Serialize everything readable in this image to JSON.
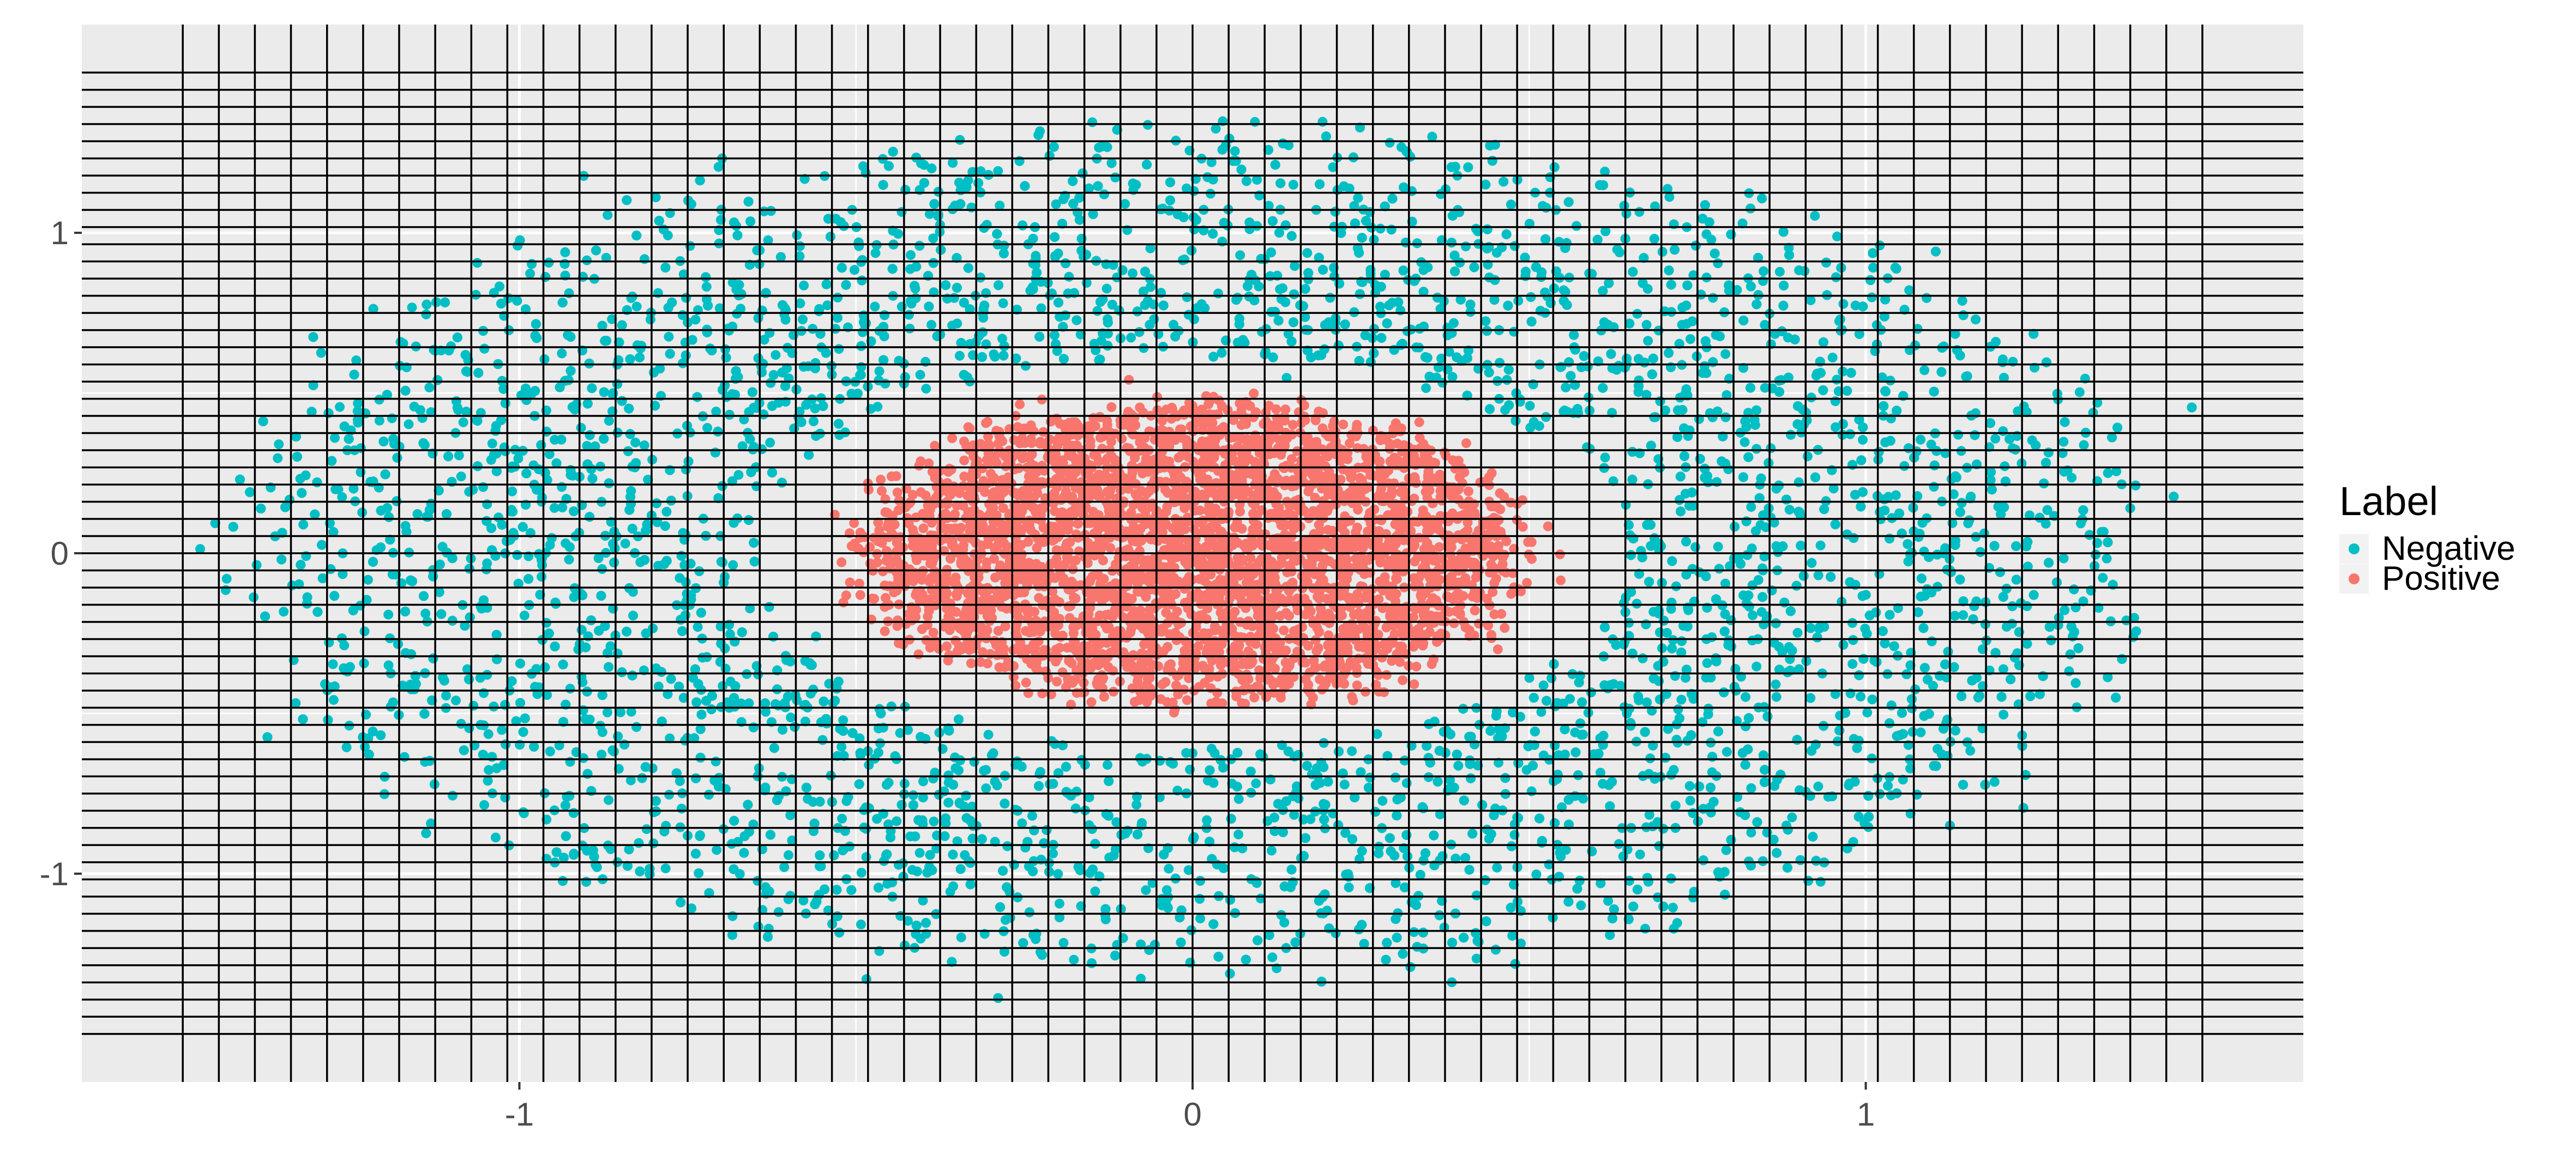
{
  "chart_data": {
    "type": "scatter",
    "title": "",
    "xlabel": "",
    "ylabel": "",
    "xlim": [
      -1.65,
      1.65
    ],
    "ylim": [
      -1.65,
      1.65
    ],
    "x_ticks": [
      -1,
      0,
      1
    ],
    "x_tick_labels": [
      "-1",
      "0",
      "1"
    ],
    "y_ticks": [
      -1,
      0,
      1
    ],
    "y_tick_labels": [
      "-1",
      "0",
      "1"
    ],
    "grid": true,
    "background": "#EBEBEB",
    "overlay_grid": {
      "color": "#000000",
      "vertical_lines_x": [
        -1.5,
        -1.4464,
        -1.3929,
        -1.3393,
        -1.2857,
        -1.2321,
        -1.1786,
        -1.125,
        -1.0714,
        -1.0179,
        -0.9643,
        -0.9107,
        -0.8571,
        -0.8036,
        -0.75,
        -0.6964,
        -0.6429,
        -0.5893,
        -0.5357,
        -0.4821,
        -0.4286,
        -0.375,
        -0.3214,
        -0.2679,
        -0.2143,
        -0.1607,
        -0.1071,
        -0.0536,
        0,
        0.0536,
        0.1071,
        0.1607,
        0.2143,
        0.2679,
        0.3214,
        0.375,
        0.4286,
        0.4821,
        0.5357,
        0.5893,
        0.6429,
        0.6964,
        0.75,
        0.8036,
        0.8571,
        0.9107,
        0.9643,
        1.0179,
        1.0714,
        1.125,
        1.1786,
        1.2321,
        1.2857,
        1.3393,
        1.3929,
        1.4464,
        1.5
      ],
      "horizontal_lines_y": [
        -1.5,
        -1.4464,
        -1.3929,
        -1.3393,
        -1.2857,
        -1.2321,
        -1.1786,
        -1.125,
        -1.0714,
        -1.0179,
        -0.9643,
        -0.9107,
        -0.8571,
        -0.8036,
        -0.75,
        -0.6964,
        -0.6429,
        -0.5893,
        -0.5357,
        -0.4821,
        -0.4286,
        -0.375,
        -0.3214,
        -0.2679,
        -0.2143,
        -0.1607,
        -0.1071,
        -0.0536,
        0,
        0.0536,
        0.1071,
        0.1607,
        0.2143,
        0.2679,
        0.3214,
        0.375,
        0.4286,
        0.4821,
        0.5357,
        0.5893,
        0.6429,
        0.6964,
        0.75,
        0.8036,
        0.8571,
        0.9107,
        0.9643,
        1.0179,
        1.0714,
        1.125,
        1.1786,
        1.2321,
        1.2857,
        1.3393,
        1.3929,
        1.4464,
        1.5
      ]
    },
    "legend": {
      "title": "Label",
      "position": "right",
      "entries": [
        {
          "name": "Negative",
          "color": "#00BFC4"
        },
        {
          "name": "Positive",
          "color": "#F8766D"
        }
      ]
    },
    "series": [
      {
        "name": "Negative",
        "color": "#00BFC4",
        "shape": "ring",
        "inner_radius_x": 0.7,
        "outer_radius_x": 1.5,
        "inner_radius_y": 0.6,
        "outer_radius_y": 1.4
      },
      {
        "name": "Positive",
        "color": "#F8766D",
        "shape": "disk",
        "radius_x": 0.5,
        "radius_y": 0.52
      }
    ]
  }
}
